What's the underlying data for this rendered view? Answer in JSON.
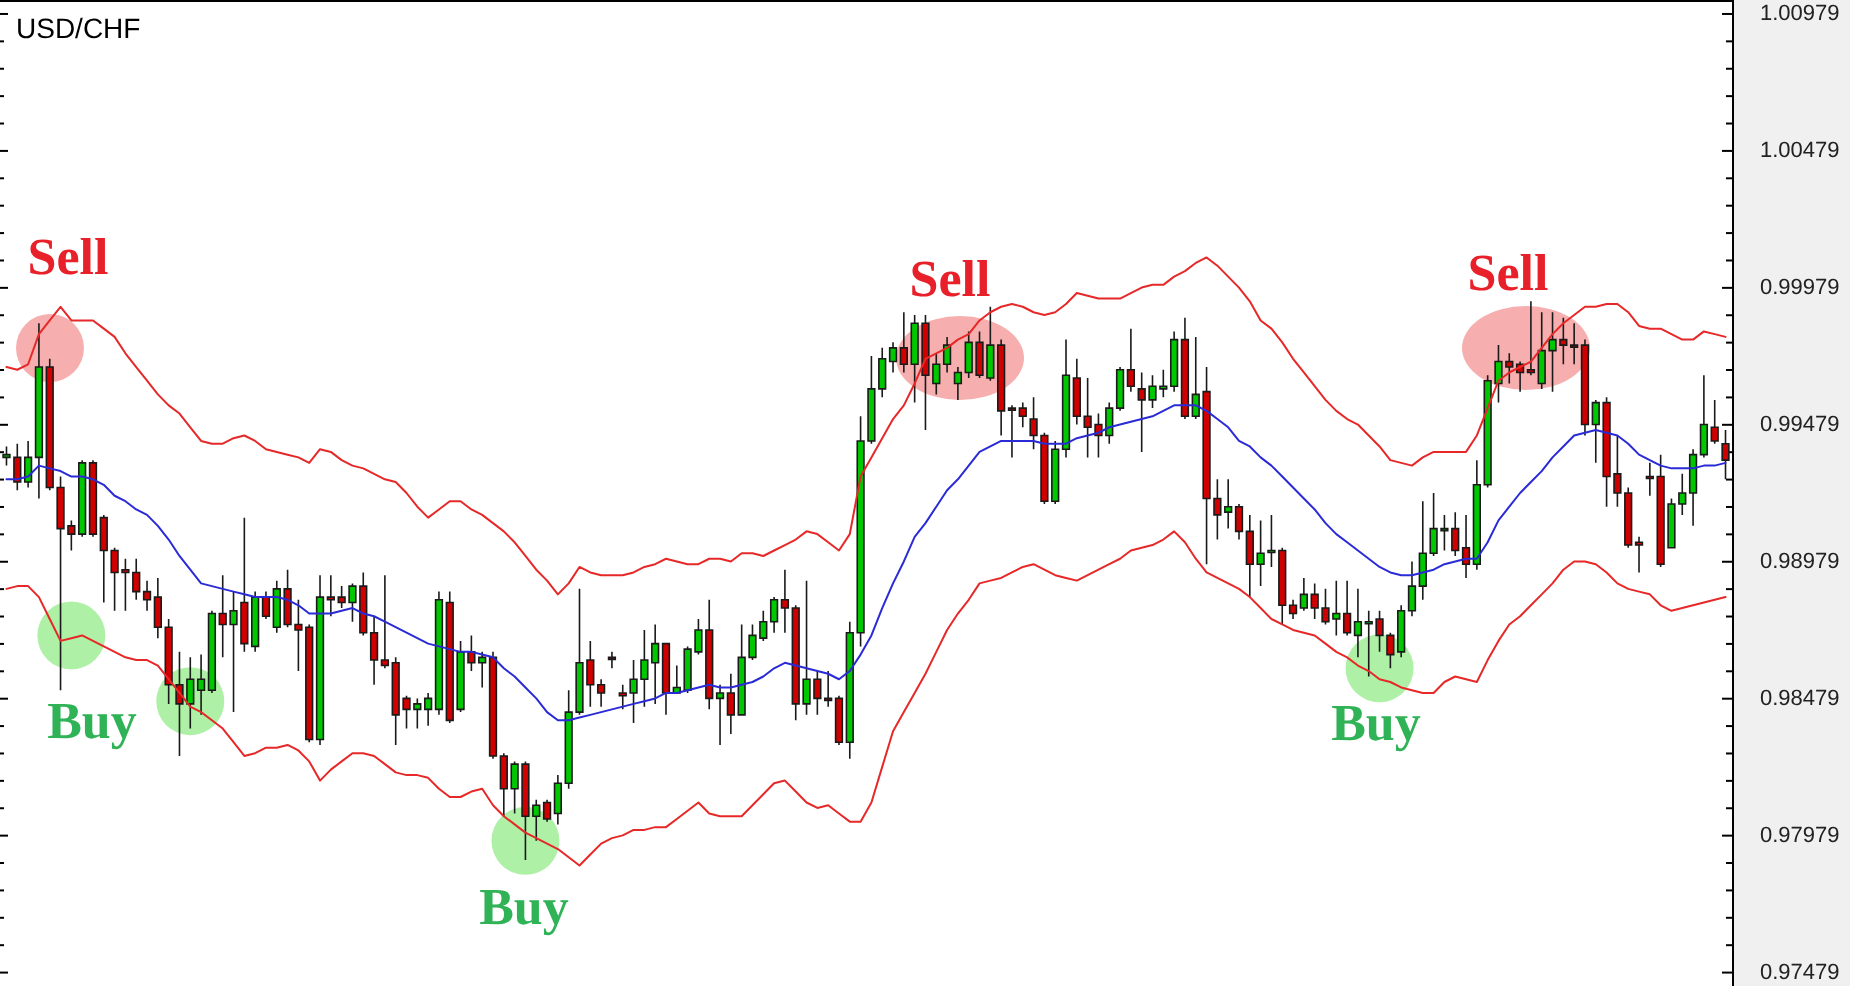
{
  "chart_data": {
    "type": "candlestick",
    "title": "USD/CHF",
    "categories": [
      null,
      null,
      null,
      null,
      null,
      null,
      null,
      null,
      null,
      null,
      null,
      null,
      null,
      null,
      null,
      null,
      null,
      null,
      null,
      null,
      null,
      null,
      null,
      null,
      null,
      null,
      null,
      null,
      null,
      null,
      null,
      null,
      null,
      null,
      null,
      null,
      null,
      null,
      null,
      null,
      null,
      null,
      null,
      null,
      null,
      null,
      null,
      null,
      null,
      null,
      null,
      null,
      null,
      null,
      null,
      null,
      null,
      null,
      null,
      null,
      null,
      null,
      null,
      null,
      null,
      null,
      null,
      null,
      null,
      null,
      null,
      null,
      null,
      null,
      null,
      null,
      null,
      null,
      null,
      null,
      null,
      null,
      null,
      null,
      null,
      null,
      null,
      null,
      null,
      null,
      null,
      null,
      null,
      null,
      null,
      null,
      null,
      null,
      null,
      null,
      null,
      null,
      null,
      null,
      null,
      null,
      null,
      null,
      null,
      null,
      null,
      null,
      null,
      null,
      null,
      null,
      null,
      null,
      null,
      null,
      null,
      null,
      null,
      null,
      null,
      null,
      null,
      null,
      null,
      null,
      null,
      null,
      null,
      null,
      null,
      null,
      null,
      null,
      null,
      null,
      null,
      null,
      null,
      null,
      null,
      null,
      null,
      null,
      null,
      null,
      null,
      null,
      null,
      null,
      null,
      null,
      null,
      null,
      null,
      null
    ],
    "ohlc": [
      [
        0.9936,
        0.994,
        0.9933,
        0.9937
      ],
      [
        0.9936,
        0.9941,
        0.9924,
        0.9927
      ],
      [
        0.9927,
        0.9942,
        0.9925,
        0.9936
      ],
      [
        0.9936,
        0.9985,
        0.9921,
        0.9969
      ],
      [
        0.9969,
        0.9972,
        0.9924,
        0.9925
      ],
      [
        0.9925,
        0.9929,
        0.9851,
        0.991
      ],
      [
        0.9911,
        0.9913,
        0.9902,
        0.9908
      ],
      [
        0.9908,
        0.9935,
        0.9907,
        0.9934
      ],
      [
        0.9934,
        0.9935,
        0.9907,
        0.9908
      ],
      [
        0.9914,
        0.9915,
        0.9883,
        0.9902
      ],
      [
        0.9902,
        0.9903,
        0.988,
        0.9894
      ],
      [
        0.9895,
        0.9899,
        0.988,
        0.9894
      ],
      [
        0.9894,
        0.9899,
        0.9884,
        0.9887
      ],
      [
        0.9887,
        0.9891,
        0.988,
        0.9884
      ],
      [
        0.9885,
        0.9892,
        0.987,
        0.9874
      ],
      [
        0.9874,
        0.9877,
        0.9846,
        0.9853
      ],
      [
        0.9853,
        0.9865,
        0.9827,
        0.9846
      ],
      [
        0.9846,
        0.9863,
        0.9837,
        0.9855
      ],
      [
        0.9851,
        0.9864,
        0.9842,
        0.9855
      ],
      [
        0.9851,
        0.988,
        0.985,
        0.9879
      ],
      [
        0.9879,
        0.9893,
        0.9863,
        0.9875
      ],
      [
        0.9875,
        0.9887,
        0.9843,
        0.988
      ],
      [
        0.9883,
        0.9914,
        0.9865,
        0.9868
      ],
      [
        0.9867,
        0.9887,
        0.9865,
        0.9885
      ],
      [
        0.9885,
        0.9887,
        0.9877,
        0.9878
      ],
      [
        0.9874,
        0.9891,
        0.9872,
        0.9888
      ],
      [
        0.9888,
        0.9895,
        0.9874,
        0.9875
      ],
      [
        0.9875,
        0.9884,
        0.9858,
        0.9873
      ],
      [
        0.9874,
        0.9875,
        0.9832,
        0.9833
      ],
      [
        0.9833,
        0.9893,
        0.9831,
        0.9885
      ],
      [
        0.9885,
        0.9893,
        0.9878,
        0.9884
      ],
      [
        0.9885,
        0.9889,
        0.9881,
        0.9883
      ],
      [
        0.9883,
        0.989,
        0.9876,
        0.9889
      ],
      [
        0.9889,
        0.9894,
        0.9871,
        0.9872
      ],
      [
        0.9872,
        0.9878,
        0.9853,
        0.9862
      ],
      [
        0.9862,
        0.9893,
        0.9859,
        0.986
      ],
      [
        0.9861,
        0.9863,
        0.9831,
        0.9842
      ],
      [
        0.9848,
        0.9849,
        0.9837,
        0.9844
      ],
      [
        0.9844,
        0.9848,
        0.9837,
        0.9846
      ],
      [
        0.9844,
        0.985,
        0.9838,
        0.9848
      ],
      [
        0.9844,
        0.9887,
        0.9842,
        0.9884
      ],
      [
        0.9883,
        0.9887,
        0.9839,
        0.984
      ],
      [
        0.9844,
        0.9869,
        0.9843,
        0.9865
      ],
      [
        0.9865,
        0.9871,
        0.9858,
        0.9861
      ],
      [
        0.9861,
        0.9865,
        0.9852,
        0.9863
      ],
      [
        0.9863,
        0.9865,
        0.9826,
        0.9827
      ],
      [
        0.9827,
        0.9828,
        0.9805,
        0.9815
      ],
      [
        0.9815,
        0.9825,
        0.9806,
        0.9824
      ],
      [
        0.9824,
        0.9825,
        0.9789,
        0.9805
      ],
      [
        0.9805,
        0.9811,
        0.9796,
        0.9809
      ],
      [
        0.981,
        0.9811,
        0.9803,
        0.9804
      ],
      [
        0.9806,
        0.982,
        0.9802,
        0.9817
      ],
      [
        0.9817,
        0.9851,
        0.9815,
        0.9843
      ],
      [
        0.9843,
        0.9888,
        0.9842,
        0.9861
      ],
      [
        0.9862,
        0.9869,
        0.9845,
        0.9853
      ],
      [
        0.9853,
        0.9855,
        0.9845,
        0.985
      ],
      [
        0.9863,
        0.9865,
        0.9859,
        0.9863
      ],
      [
        0.985,
        0.9853,
        0.9844,
        0.9849
      ],
      [
        0.985,
        0.9862,
        0.9839,
        0.9855
      ],
      [
        0.9855,
        0.9873,
        0.9845,
        0.9862
      ],
      [
        0.9861,
        0.9875,
        0.9846,
        0.9868
      ],
      [
        0.9868,
        0.9868,
        0.9842,
        0.985
      ],
      [
        0.985,
        0.986,
        0.985,
        0.9852
      ],
      [
        0.9851,
        0.9867,
        0.985,
        0.9866
      ],
      [
        0.9865,
        0.9877,
        0.9864,
        0.9873
      ],
      [
        0.9873,
        0.9884,
        0.9844,
        0.9848
      ],
      [
        0.9848,
        0.9853,
        0.9831,
        0.985
      ],
      [
        0.985,
        0.9857,
        0.9835,
        0.9842
      ],
      [
        0.9842,
        0.9875,
        0.9842,
        0.9863
      ],
      [
        0.9863,
        0.9875,
        0.9862,
        0.9871
      ],
      [
        0.987,
        0.988,
        0.9869,
        0.9876
      ],
      [
        0.9876,
        0.9885,
        0.9872,
        0.9884
      ],
      [
        0.9884,
        0.9895,
        0.9872,
        0.9881
      ],
      [
        0.9881,
        0.9882,
        0.984,
        0.9846
      ],
      [
        0.9846,
        0.9891,
        0.9842,
        0.9855
      ],
      [
        0.9855,
        0.9858,
        0.9842,
        0.9848
      ],
      [
        0.9848,
        0.9858,
        0.9845,
        0.9848
      ],
      [
        0.9848,
        0.9849,
        0.9831,
        0.9832
      ],
      [
        0.9832,
        0.9876,
        0.9826,
        0.9872
      ],
      [
        0.9872,
        0.9951,
        0.9867,
        0.9942
      ],
      [
        0.9942,
        0.9973,
        0.9941,
        0.9961
      ],
      [
        0.9961,
        0.9976,
        0.9958,
        0.9972
      ],
      [
        0.9971,
        0.9978,
        0.9967,
        0.9976
      ],
      [
        0.9976,
        0.9989,
        0.9967,
        0.997
      ],
      [
        0.997,
        0.9988,
        0.9956,
        0.9985
      ],
      [
        0.9985,
        0.9988,
        0.9946,
        0.9966
      ],
      [
        0.9963,
        0.9974,
        0.9959,
        0.997
      ],
      [
        0.997,
        0.998,
        0.9967,
        0.9977
      ],
      [
        0.9963,
        0.9969,
        0.9957,
        0.9967
      ],
      [
        0.9967,
        0.9982,
        0.9965,
        0.9978
      ],
      [
        0.9978,
        0.9982,
        0.9965,
        0.9966
      ],
      [
        0.9965,
        0.9991,
        0.9964,
        0.9977
      ],
      [
        0.9977,
        0.9979,
        0.9944,
        0.9953
      ],
      [
        0.9954,
        0.9955,
        0.9936,
        0.9954
      ],
      [
        0.9954,
        0.9956,
        0.9947,
        0.9951
      ],
      [
        0.995,
        0.9958,
        0.9939,
        0.9944
      ],
      [
        0.9944,
        0.9945,
        0.9919,
        0.992
      ],
      [
        0.992,
        0.9942,
        0.9919,
        0.9939
      ],
      [
        0.9939,
        0.9979,
        0.9936,
        0.9966
      ],
      [
        0.9965,
        0.9972,
        0.9948,
        0.9951
      ],
      [
        0.9951,
        0.9965,
        0.9936,
        0.9947
      ],
      [
        0.9948,
        0.9952,
        0.9936,
        0.9944
      ],
      [
        0.9944,
        0.9956,
        0.9941,
        0.9954
      ],
      [
        0.9954,
        0.9969,
        0.9953,
        0.9968
      ],
      [
        0.9968,
        0.9983,
        0.996,
        0.9962
      ],
      [
        0.9961,
        0.9967,
        0.9938,
        0.9957
      ],
      [
        0.9957,
        0.9966,
        0.9954,
        0.9962
      ],
      [
        0.9961,
        0.9968,
        0.9958,
        0.9962
      ],
      [
        0.9962,
        0.9982,
        0.996,
        0.9979
      ],
      [
        0.9979,
        0.9987,
        0.995,
        0.9951
      ],
      [
        0.9951,
        0.998,
        0.995,
        0.9959
      ],
      [
        0.996,
        0.9969,
        0.9897,
        0.9921
      ],
      [
        0.9921,
        0.9928,
        0.9906,
        0.9915
      ],
      [
        0.9916,
        0.9928,
        0.991,
        0.9918
      ],
      [
        0.9918,
        0.9919,
        0.9906,
        0.9909
      ],
      [
        0.9909,
        0.9915,
        0.9885,
        0.9897
      ],
      [
        0.9897,
        0.9913,
        0.9889,
        0.9901
      ],
      [
        0.9902,
        0.9915,
        0.9896,
        0.9902
      ],
      [
        0.9902,
        0.9903,
        0.9875,
        0.9882
      ],
      [
        0.9882,
        0.9884,
        0.9877,
        0.9879
      ],
      [
        0.9881,
        0.9892,
        0.988,
        0.9886
      ],
      [
        0.9886,
        0.989,
        0.9877,
        0.9881
      ],
      [
        0.9881,
        0.9888,
        0.9875,
        0.9876
      ],
      [
        0.9877,
        0.9891,
        0.9871,
        0.9879
      ],
      [
        0.9879,
        0.9891,
        0.9871,
        0.9872
      ],
      [
        0.9871,
        0.9888,
        0.9863,
        0.9876
      ],
      [
        0.9876,
        0.988,
        0.9856,
        0.9876
      ],
      [
        0.9877,
        0.988,
        0.9865,
        0.9871
      ],
      [
        0.9871,
        0.9872,
        0.9859,
        0.9864
      ],
      [
        0.9865,
        0.9882,
        0.9863,
        0.988
      ],
      [
        0.988,
        0.9898,
        0.9878,
        0.9889
      ],
      [
        0.9889,
        0.992,
        0.9884,
        0.9901
      ],
      [
        0.9901,
        0.9923,
        0.99,
        0.991
      ],
      [
        0.991,
        0.9915,
        0.9902,
        0.991
      ],
      [
        0.991,
        0.9916,
        0.99,
        0.9902
      ],
      [
        0.9903,
        0.9915,
        0.9892,
        0.9897
      ],
      [
        0.9897,
        0.9935,
        0.9895,
        0.9926
      ],
      [
        0.9926,
        0.9966,
        0.9925,
        0.9964
      ],
      [
        0.9963,
        0.9977,
        0.9956,
        0.9971
      ],
      [
        0.9971,
        0.9974,
        0.9963,
        0.9969
      ],
      [
        0.997,
        0.9971,
        0.996,
        0.9967
      ],
      [
        0.9968,
        0.9993,
        0.9966,
        0.9967
      ],
      [
        0.9963,
        0.9989,
        0.9961,
        0.9975
      ],
      [
        0.9975,
        0.9989,
        0.996,
        0.9979
      ],
      [
        0.9979,
        0.9987,
        0.997,
        0.9977
      ],
      [
        0.9977,
        0.9985,
        0.997,
        0.9977
      ],
      [
        0.9977,
        0.9979,
        0.9944,
        0.9948
      ],
      [
        0.9948,
        0.9957,
        0.9934,
        0.9956
      ],
      [
        0.9956,
        0.9958,
        0.9918,
        0.9929
      ],
      [
        0.993,
        0.9944,
        0.9918,
        0.9923
      ],
      [
        0.9923,
        0.9925,
        0.9903,
        0.9904
      ],
      [
        0.9905,
        0.9907,
        0.9894,
        0.9904
      ],
      [
        0.9929,
        0.9934,
        0.9922,
        0.9929
      ],
      [
        0.9929,
        0.9937,
        0.9896,
        0.9897
      ],
      [
        0.9903,
        0.9921,
        0.9903,
        0.9919
      ],
      [
        0.9919,
        0.993,
        0.9915,
        0.9923
      ],
      [
        0.9923,
        0.9939,
        0.9911,
        0.9937
      ],
      [
        0.9937,
        0.9966,
        0.9936,
        0.9948
      ],
      [
        0.9947,
        0.9957,
        0.9941,
        0.9942
      ],
      [
        0.9941,
        0.9946,
        0.9928,
        0.9935
      ]
    ],
    "colors": [
      "#00c800",
      "#d00000",
      "#00c800",
      "#00c800",
      "#d00000",
      "#d00000",
      "#d00000",
      "#00c800",
      "#d00000",
      "#d00000",
      "#d00000",
      "#d00000",
      "#d00000",
      "#d00000",
      "#d00000",
      "#d00000",
      "#d00000",
      "#00c800",
      "#00c800",
      "#00c800",
      "#d00000",
      "#00c800",
      "#d00000",
      "#00c800",
      "#d00000",
      "#00c800",
      "#d00000",
      "#d00000",
      "#d00000",
      "#00c800",
      "#d00000",
      "#d00000",
      "#00c800",
      "#d00000",
      "#d00000",
      "#d00000",
      "#d00000",
      "#d00000",
      "#00c800",
      "#00c800",
      "#00c800",
      "#d00000",
      "#00c800",
      "#d00000",
      "#00c800",
      "#d00000",
      "#d00000",
      "#00c800",
      "#d00000",
      "#00c800",
      "#d00000",
      "#00c800",
      "#00c800",
      "#00c800",
      "#d00000",
      "#d00000",
      "#d00000",
      "#d00000",
      "#00c800",
      "#00c800",
      "#00c800",
      "#d00000",
      "#00c800",
      "#00c800",
      "#00c800",
      "#d00000",
      "#00c800",
      "#d00000",
      "#00c800",
      "#00c800",
      "#00c800",
      "#00c800",
      "#d00000",
      "#d00000",
      "#00c800",
      "#d00000",
      "#d00000",
      "#d00000",
      "#00c800",
      "#00c800",
      "#00c800",
      "#00c800",
      "#00c800",
      "#d00000",
      "#00c800",
      "#d00000",
      "#00c800",
      "#00c800",
      "#00c800",
      "#00c800",
      "#d00000",
      "#00c800",
      "#d00000",
      "#d00000",
      "#d00000",
      "#d00000",
      "#d00000",
      "#00c800",
      "#00c800",
      "#d00000",
      "#d00000",
      "#d00000",
      "#00c800",
      "#00c800",
      "#d00000",
      "#d00000",
      "#00c800",
      "#00c800",
      "#00c800",
      "#d00000",
      "#00c800",
      "#d00000",
      "#d00000",
      "#00c800",
      "#d00000",
      "#d00000",
      "#00c800",
      "#00c800",
      "#d00000",
      "#d00000",
      "#00c800",
      "#d00000",
      "#d00000",
      "#00c800",
      "#d00000",
      "#00c800",
      "#00c800",
      "#d00000",
      "#d00000",
      "#00c800",
      "#00c800",
      "#00c800",
      "#00c800",
      "#00c800",
      "#d00000",
      "#d00000",
      "#00c800",
      "#00c800",
      "#00c800",
      "#d00000",
      "#d00000",
      "#d00000",
      "#00c800",
      "#00c800",
      "#d00000",
      "#d00000",
      "#d00000",
      "#00c800",
      "#d00000",
      "#d00000",
      "#d00000",
      "#d00000",
      "#d00000",
      "#d00000",
      "#00c800",
      "#00c800",
      "#00c800",
      "#00c800",
      "#d00000",
      "#d00000"
    ],
    "series": [
      {
        "type": "scatter",
        "color": "#aef0a6",
        "marker": "circle",
        "values": [
          null,
          null,
          null,
          null,
          null,
          null,
          0.9871,
          null,
          null,
          null,
          null,
          null,
          null,
          null,
          null,
          null,
          null,
          0.9847,
          null,
          null,
          null,
          null,
          null,
          null,
          null,
          null,
          null,
          null,
          null,
          null,
          null,
          null,
          null,
          null,
          null,
          null,
          null,
          null,
          null,
          null,
          null,
          null,
          null,
          null,
          null,
          null,
          null,
          null,
          0.9796,
          null,
          null,
          null,
          null,
          null,
          null,
          null,
          null,
          null,
          null,
          null,
          null,
          null,
          null,
          null,
          null,
          null,
          null,
          null,
          null,
          null,
          null,
          null,
          null,
          null,
          null,
          null,
          null,
          null,
          null,
          null,
          null,
          null,
          null,
          null,
          null,
          null,
          null,
          null,
          null,
          null,
          null,
          null,
          null,
          null,
          null,
          null,
          null,
          null,
          null,
          null,
          null,
          null,
          null,
          null,
          null,
          null,
          null,
          null,
          null,
          null,
          null,
          null,
          null,
          null,
          null,
          null,
          null,
          null,
          null,
          null,
          null,
          null,
          null,
          null,
          null,
          null,
          null,
          0.9859,
          null,
          null,
          null,
          null,
          null,
          null,
          null,
          null,
          null,
          null,
          null,
          null,
          null,
          null,
          null,
          null,
          null,
          null,
          null,
          null,
          null,
          null,
          null,
          null,
          null,
          null,
          null,
          null,
          null,
          null,
          null,
          null
        ]
      },
      {
        "type": "line",
        "color": "#e62828",
        "values": [
          0.9969,
          0.9968,
          0.997,
          0.9981,
          0.9986,
          0.9991,
          0.9986,
          0.9986,
          0.9986,
          0.9983,
          0.998,
          0.9974,
          0.9969,
          0.9964,
          0.9959,
          0.9955,
          0.9952,
          0.9947,
          0.9942,
          0.9941,
          0.9941,
          0.9943,
          0.9944,
          0.9942,
          0.9939,
          0.9938,
          0.9937,
          0.9936,
          0.9934,
          0.9939,
          0.9938,
          0.9935,
          0.9933,
          0.9932,
          0.993,
          0.9928,
          0.9927,
          0.9923,
          0.9918,
          0.9914,
          0.9917,
          0.992,
          0.992,
          0.9917,
          0.9915,
          0.9912,
          0.9909,
          0.9905,
          0.99,
          0.9895,
          0.9891,
          0.9886,
          0.989,
          0.9896,
          0.9894,
          0.9893,
          0.9893,
          0.9893,
          0.9894,
          0.9896,
          0.9897,
          0.9899,
          0.9898,
          0.9897,
          0.9897,
          0.9899,
          0.9899,
          0.9898,
          0.9901,
          0.9901,
          0.99,
          0.9902,
          0.9904,
          0.9906,
          0.9909,
          0.9908,
          0.9905,
          0.9902,
          0.9908,
          0.9929,
          0.9936,
          0.9943,
          0.995,
          0.9955,
          0.9963,
          0.9972,
          0.9974,
          0.9976,
          0.9979,
          0.9981,
          0.9986,
          0.9989,
          0.9991,
          0.9992,
          0.9991,
          0.9989,
          0.9988,
          0.9989,
          0.9992,
          0.9996,
          0.9995,
          0.9994,
          0.9994,
          0.9994,
          0.9996,
          0.9998,
          0.9999,
          0.9999,
          1.0002,
          1.0004,
          1.0007,
          1.0009,
          1.0006,
          1.0002,
          0.9998,
          0.9993,
          0.9986,
          0.9983,
          0.9978,
          0.9972,
          0.9967,
          0.9962,
          0.9957,
          0.9953,
          0.995,
          0.9948,
          0.9944,
          0.994,
          0.9935,
          0.9934,
          0.9933,
          0.9936,
          0.9938,
          0.9938,
          0.9938,
          0.9938,
          0.9944,
          0.9954,
          0.9964,
          0.9967,
          0.9969,
          0.9971,
          0.9976,
          0.9981,
          0.9985,
          0.9988,
          0.9991,
          0.9991,
          0.9992,
          0.9992,
          0.9989,
          0.9984,
          0.9983,
          0.9983,
          0.9981,
          0.9979,
          0.9979,
          0.9982,
          0.9981,
          0.998
        ]
      },
      {
        "type": "line",
        "color": "#2a2ad6",
        "values": [
          0.9928,
          0.9928,
          0.9929,
          0.9933,
          0.9932,
          0.9931,
          0.9929,
          0.9929,
          0.9928,
          0.9926,
          0.9922,
          0.992,
          0.9917,
          0.9915,
          0.9911,
          0.9906,
          0.99,
          0.9895,
          0.989,
          0.9889,
          0.9888,
          0.9887,
          0.9886,
          0.9885,
          0.9885,
          0.9885,
          0.9884,
          0.9882,
          0.9879,
          0.9879,
          0.9879,
          0.988,
          0.9881,
          0.9879,
          0.9878,
          0.9876,
          0.9874,
          0.9872,
          0.987,
          0.9868,
          0.9867,
          0.9866,
          0.9865,
          0.9865,
          0.9864,
          0.9863,
          0.9859,
          0.9856,
          0.9852,
          0.9848,
          0.9843,
          0.984,
          0.984,
          0.9841,
          0.9842,
          0.9843,
          0.9844,
          0.9845,
          0.9846,
          0.9847,
          0.9848,
          0.985,
          0.985,
          0.9851,
          0.9852,
          0.9853,
          0.9852,
          0.9852,
          0.9853,
          0.9854,
          0.9856,
          0.9859,
          0.9861,
          0.986,
          0.9859,
          0.9858,
          0.9857,
          0.9855,
          0.9858,
          0.9864,
          0.9871,
          0.9881,
          0.989,
          0.9898,
          0.9907,
          0.9912,
          0.9918,
          0.9924,
          0.9928,
          0.9933,
          0.9938,
          0.994,
          0.9942,
          0.9942,
          0.9942,
          0.9942,
          0.9941,
          0.9941,
          0.9941,
          0.9943,
          0.9944,
          0.9945,
          0.9947,
          0.9948,
          0.9949,
          0.995,
          0.9951,
          0.9953,
          0.9955,
          0.9955,
          0.9955,
          0.9953,
          0.995,
          0.9947,
          0.9942,
          0.994,
          0.9936,
          0.9933,
          0.9929,
          0.9925,
          0.9921,
          0.9917,
          0.9912,
          0.9908,
          0.9905,
          0.9902,
          0.9899,
          0.9896,
          0.9894,
          0.9893,
          0.9893,
          0.9894,
          0.9895,
          0.9897,
          0.9898,
          0.9899,
          0.9899,
          0.9905,
          0.9913,
          0.9918,
          0.9923,
          0.9927,
          0.9931,
          0.9936,
          0.994,
          0.9944,
          0.9945,
          0.9946,
          0.9945,
          0.9944,
          0.9941,
          0.9937,
          0.9935,
          0.9933,
          0.9932,
          0.9932,
          0.9932,
          0.9933,
          0.9933,
          0.9934
        ]
      },
      {
        "type": "line",
        "color": "#e62828",
        "values": [
          0.9888,
          0.9889,
          0.9889,
          0.9885,
          0.9877,
          0.9869,
          0.987,
          0.9871,
          0.9869,
          0.9867,
          0.9865,
          0.9863,
          0.9862,
          0.9862,
          0.986,
          0.9855,
          0.985,
          0.9845,
          0.9843,
          0.984,
          0.9837,
          0.9832,
          0.9827,
          0.9828,
          0.983,
          0.983,
          0.9831,
          0.9829,
          0.9825,
          0.9818,
          0.9822,
          0.9825,
          0.9828,
          0.9828,
          0.9827,
          0.9824,
          0.9821,
          0.982,
          0.982,
          0.9819,
          0.9815,
          0.9812,
          0.9812,
          0.9814,
          0.9815,
          0.9809,
          0.9805,
          0.9802,
          0.9799,
          0.9797,
          0.9795,
          0.9793,
          0.979,
          0.9787,
          0.9791,
          0.9795,
          0.9797,
          0.9798,
          0.98,
          0.98,
          0.9801,
          0.9801,
          0.9804,
          0.9807,
          0.981,
          0.9806,
          0.9805,
          0.9805,
          0.9805,
          0.9809,
          0.9813,
          0.9817,
          0.9818,
          0.9814,
          0.981,
          0.9808,
          0.9809,
          0.9806,
          0.9803,
          0.9803,
          0.981,
          0.9823,
          0.9836,
          0.9843,
          0.985,
          0.9857,
          0.9865,
          0.9873,
          0.9879,
          0.9884,
          0.989,
          0.9891,
          0.9892,
          0.9894,
          0.9896,
          0.9897,
          0.9895,
          0.9893,
          0.9892,
          0.9891,
          0.9893,
          0.9895,
          0.9897,
          0.9899,
          0.9902,
          0.9903,
          0.9904,
          0.9906,
          0.9909,
          0.9905,
          0.9899,
          0.9894,
          0.9892,
          0.989,
          0.9888,
          0.9885,
          0.9881,
          0.9877,
          0.9875,
          0.9873,
          0.9872,
          0.9871,
          0.9868,
          0.9865,
          0.9863,
          0.986,
          0.9858,
          0.9855,
          0.9854,
          0.9852,
          0.9851,
          0.985,
          0.985,
          0.9854,
          0.9856,
          0.9855,
          0.9854,
          0.9862,
          0.9869,
          0.9875,
          0.9878,
          0.9882,
          0.9886,
          0.989,
          0.9895,
          0.9898,
          0.9898,
          0.9897,
          0.9894,
          0.989,
          0.9888,
          0.9887,
          0.9886,
          0.9882,
          0.988,
          0.9881,
          0.9882,
          0.9883,
          0.9884,
          0.9885
        ]
      }
    ],
    "ylim": [
      0.9743,
      1.0103
    ],
    "yticks": [
      0.97479,
      {
        "value": 0.97579,
        "label": null
      },
      {
        "value": 0.97679,
        "label": null
      },
      {
        "value": 0.97779,
        "label": null
      },
      {
        "value": 0.97879,
        "label": null
      },
      0.97979,
      {
        "value": 0.98079,
        "label": null
      },
      {
        "value": 0.98179,
        "label": null
      },
      {
        "value": 0.98279,
        "label": null
      },
      {
        "value": 0.98379,
        "label": null
      },
      0.98479,
      {
        "value": 0.98579,
        "label": null
      },
      {
        "value": 0.98679,
        "label": null
      },
      {
        "value": 0.98779,
        "label": null
      },
      {
        "value": 0.98879,
        "label": null
      },
      0.98979,
      {
        "value": 0.99079,
        "label": null
      },
      {
        "value": 0.99179,
        "label": null
      },
      {
        "value": 0.99279,
        "label": null
      },
      {
        "value": 0.99379,
        "label": null
      },
      0.99479,
      {
        "value": 0.99579,
        "label": null
      },
      {
        "value": 0.99679,
        "label": null
      },
      {
        "value": 0.99779,
        "label": null
      },
      {
        "value": 0.99879,
        "label": null
      },
      0.99979,
      {
        "value": 1.00079,
        "label": null
      },
      {
        "value": 1.00179,
        "label": null
      },
      {
        "value": 1.00279,
        "label": null
      },
      {
        "value": 1.00379,
        "label": null
      },
      1.00479,
      {
        "value": 1.00579,
        "label": null
      },
      {
        "value": 1.00679,
        "label": null
      },
      {
        "value": 1.00779,
        "label": null
      },
      {
        "value": 1.00879,
        "label": null
      },
      1.00979
    ],
    "tick_labels": "y",
    "annotations": [
      "Sell",
      "Buy",
      "Buy",
      "Sell",
      "Buy",
      "Sell"
    ]
  }
}
